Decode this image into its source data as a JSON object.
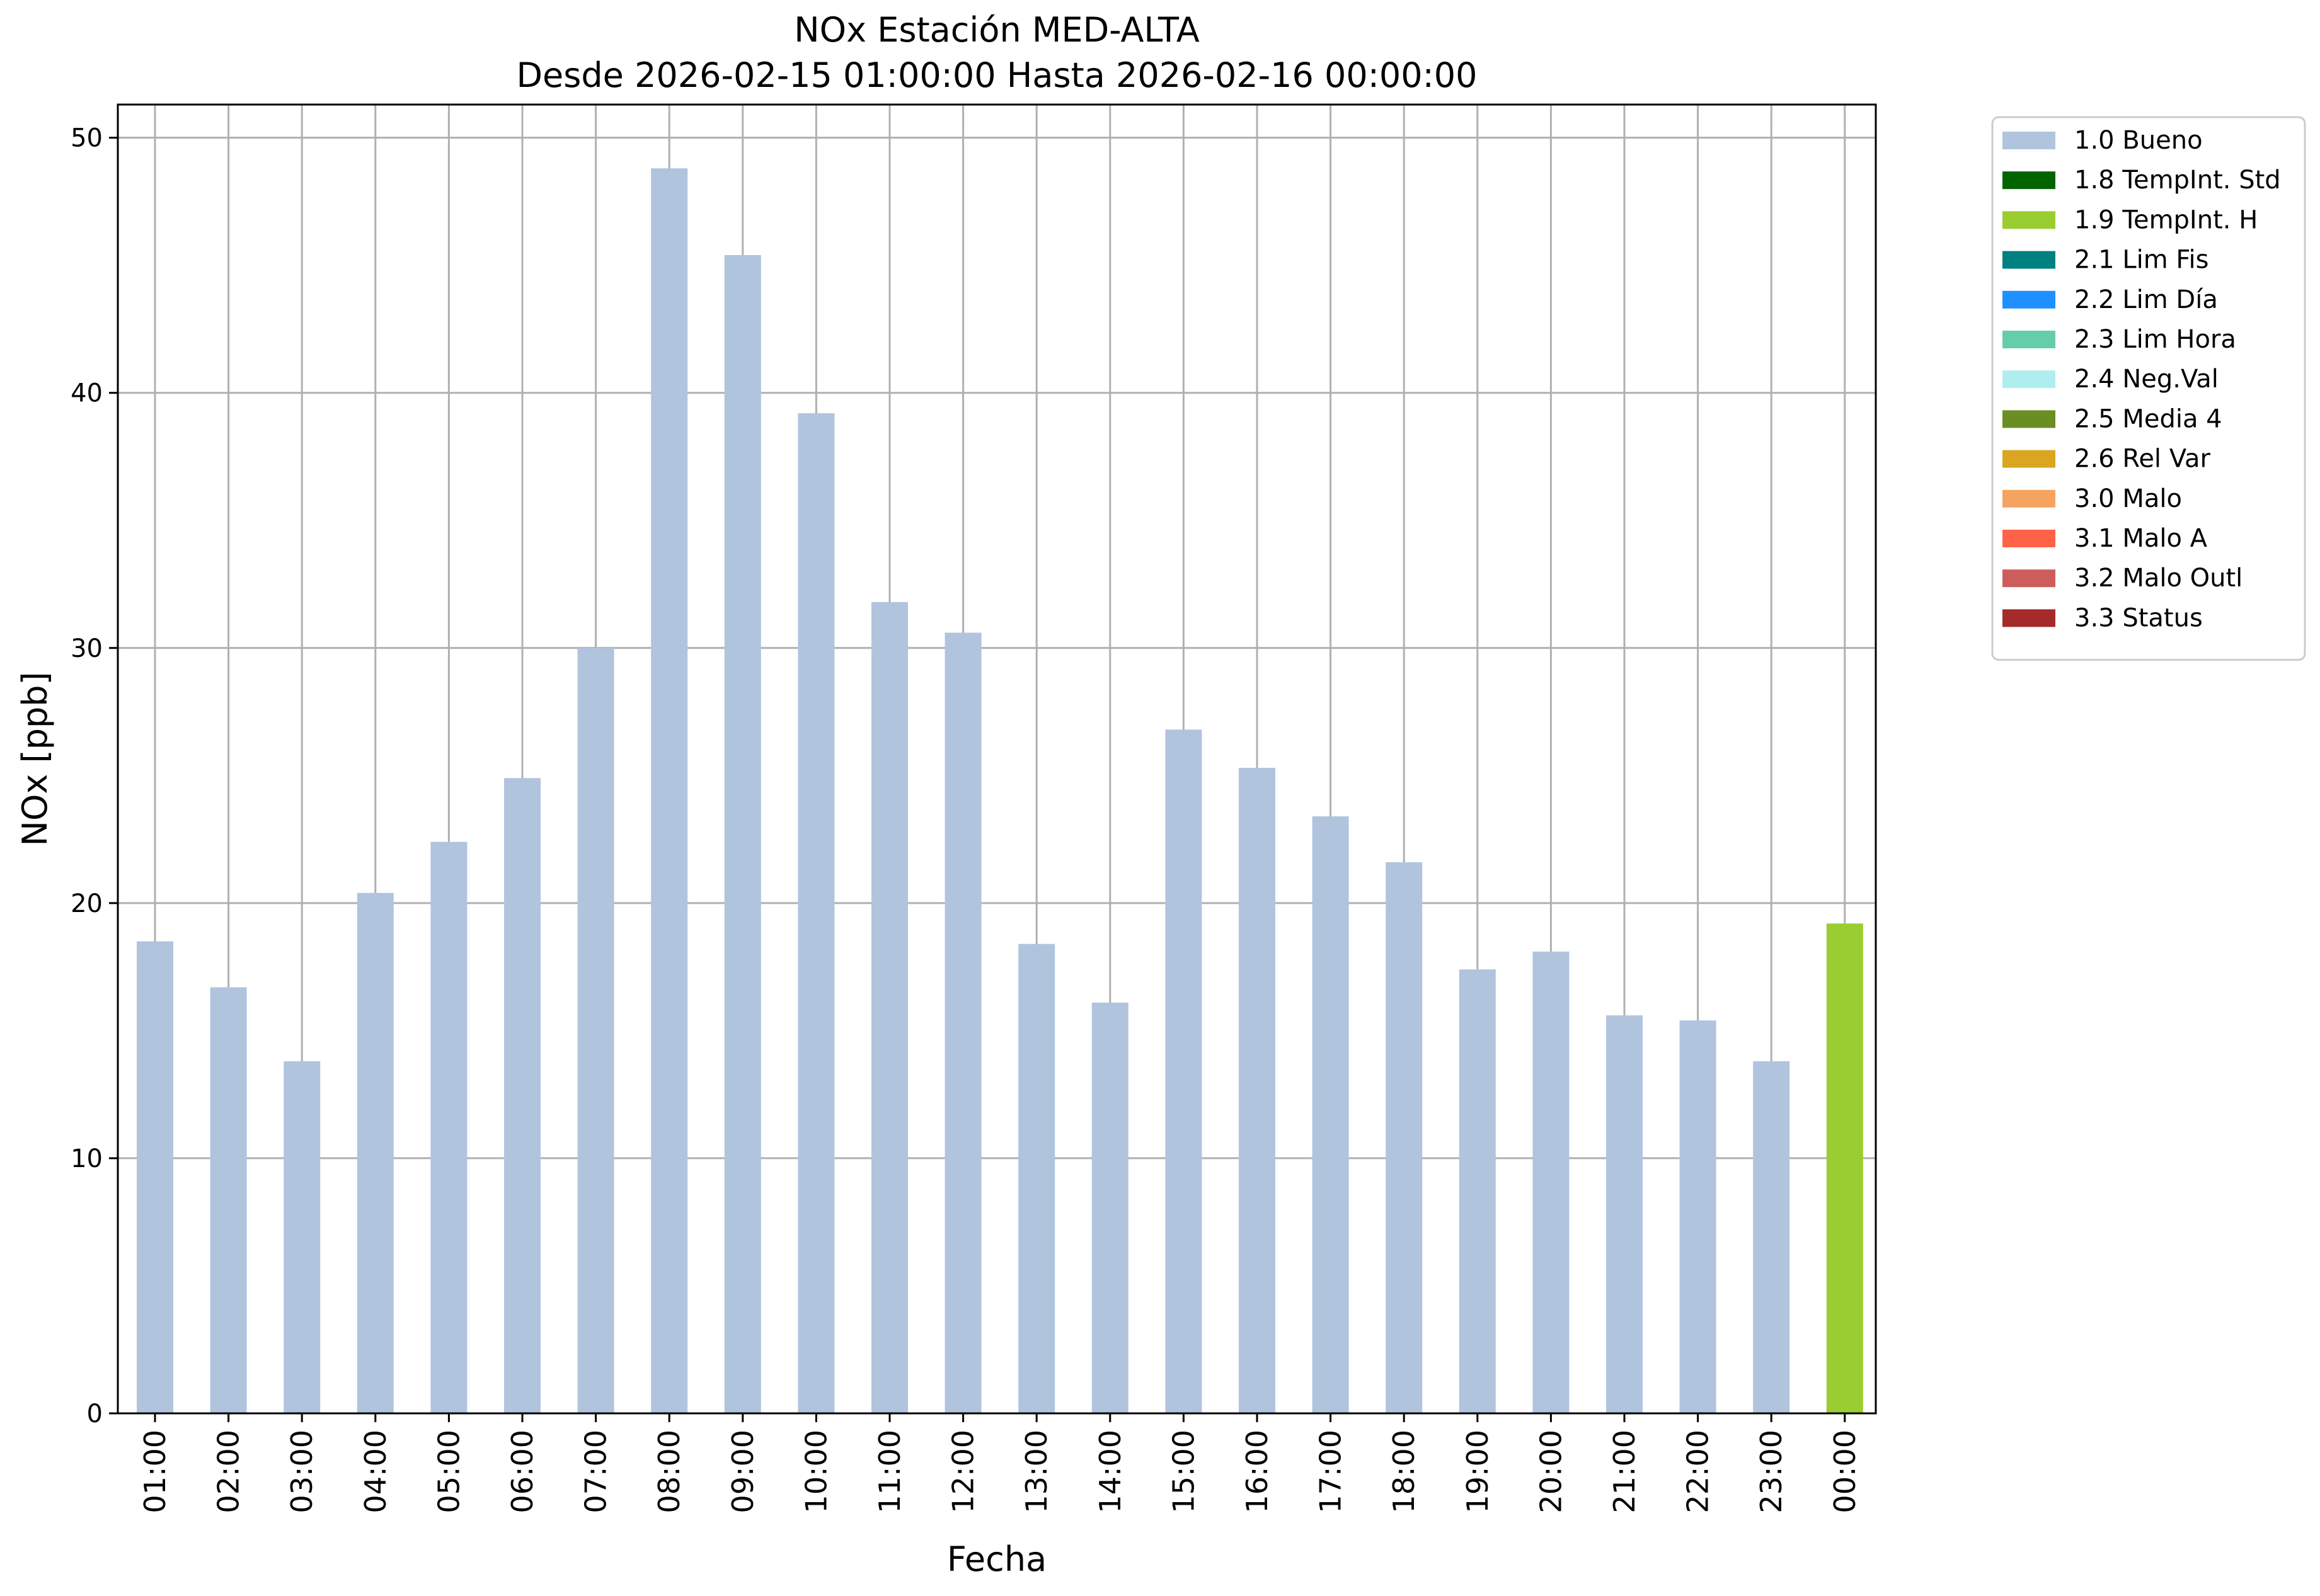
{
  "chart_data": {
    "type": "bar",
    "title": "NOx Estación MED-ALTA",
    "subtitle": "Desde 2026-02-15 01:00:00 Hasta 2026-02-16 00:00:00",
    "xlabel": "Fecha",
    "ylabel": "NOx [ppb]",
    "ylim": [
      0,
      51.3
    ],
    "yticks": [
      0,
      10,
      20,
      30,
      40,
      50
    ],
    "grid": true,
    "legend_position": "outside-top-right",
    "categories": [
      "01:00",
      "02:00",
      "03:00",
      "04:00",
      "05:00",
      "06:00",
      "07:00",
      "08:00",
      "09:00",
      "10:00",
      "11:00",
      "12:00",
      "13:00",
      "14:00",
      "15:00",
      "16:00",
      "17:00",
      "18:00",
      "19:00",
      "20:00",
      "21:00",
      "22:00",
      "23:00",
      "00:00"
    ],
    "values": [
      18.5,
      16.7,
      13.8,
      20.4,
      22.4,
      24.9,
      30.0,
      48.8,
      45.4,
      39.2,
      31.8,
      30.6,
      18.4,
      16.1,
      26.8,
      25.3,
      23.4,
      21.6,
      17.4,
      18.1,
      15.6,
      15.4,
      13.8,
      19.2
    ],
    "flags": [
      "1.0 Bueno",
      "1.0 Bueno",
      "1.0 Bueno",
      "1.0 Bueno",
      "1.0 Bueno",
      "1.0 Bueno",
      "1.0 Bueno",
      "1.0 Bueno",
      "1.0 Bueno",
      "1.0 Bueno",
      "1.0 Bueno",
      "1.0 Bueno",
      "1.0 Bueno",
      "1.0 Bueno",
      "1.0 Bueno",
      "1.0 Bueno",
      "1.0 Bueno",
      "1.0 Bueno",
      "1.0 Bueno",
      "1.0 Bueno",
      "1.0 Bueno",
      "1.0 Bueno",
      "1.0 Bueno",
      "1.9 TempInt. H"
    ],
    "legend": [
      {
        "label": "1.0 Bueno",
        "color": "#b0c4de"
      },
      {
        "label": "1.8 TempInt. Std",
        "color": "#006400"
      },
      {
        "label": "1.9 TempInt. H",
        "color": "#9acd32"
      },
      {
        "label": "2.1 Lim Fis",
        "color": "#008080"
      },
      {
        "label": "2.2 Lim Día",
        "color": "#1e90ff"
      },
      {
        "label": "2.3 Lim Hora",
        "color": "#66cdaa"
      },
      {
        "label": "2.4 Neg.Val",
        "color": "#afeeee"
      },
      {
        "label": "2.5 Media 4",
        "color": "#6b8e23"
      },
      {
        "label": "2.6 Rel Var",
        "color": "#daa520"
      },
      {
        "label": "3.0 Malo",
        "color": "#f4a460"
      },
      {
        "label": "3.1 Malo A",
        "color": "#ff6347"
      },
      {
        "label": "3.2 Malo Outl",
        "color": "#cd5c5c"
      },
      {
        "label": "3.3 Status",
        "color": "#a52a2a"
      }
    ]
  }
}
